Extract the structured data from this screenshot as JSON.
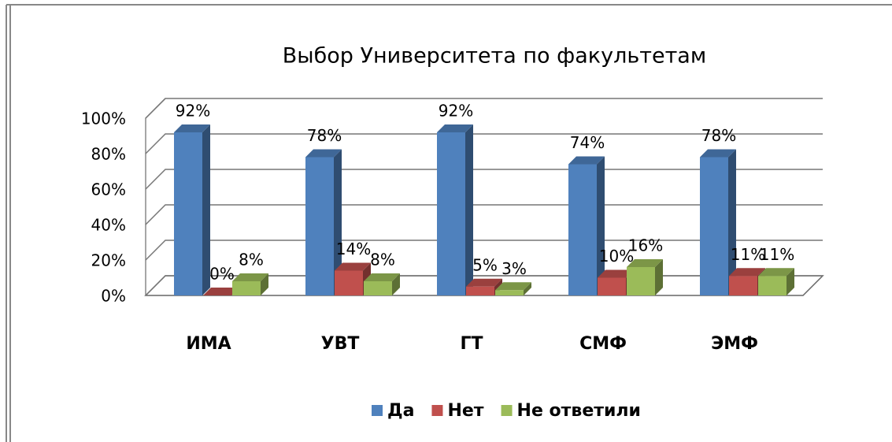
{
  "chart_data": {
    "type": "bar3d",
    "title": "Выбор Университета по факультетам",
    "categories": [
      "ИМА",
      "УВТ",
      "ГТ",
      "СМФ",
      "ЭМФ"
    ],
    "series": [
      {
        "name": "Да",
        "color": "#4f81bd",
        "values": [
          92,
          78,
          92,
          74,
          78
        ],
        "value_labels": [
          "92%",
          "78%",
          "92%",
          "74%",
          "78%"
        ]
      },
      {
        "name": "Нет",
        "color": "#c0504d",
        "values": [
          0,
          14,
          5,
          10,
          11
        ],
        "value_labels": [
          "0%",
          "14%",
          "5%",
          "10%",
          "11%"
        ]
      },
      {
        "name": "Не ответили",
        "color": "#9bbb59",
        "values": [
          8,
          8,
          3,
          16,
          11
        ],
        "value_labels": [
          "8%",
          "8%",
          "3%",
          "16%",
          "11%"
        ]
      }
    ],
    "ylim": [
      0,
      100
    ],
    "yticks": [
      {
        "value": 0,
        "label": "0%"
      },
      {
        "value": 20,
        "label": "20%"
      },
      {
        "value": 40,
        "label": "40%"
      },
      {
        "value": 60,
        "label": "60%"
      },
      {
        "value": 80,
        "label": "80%"
      },
      {
        "value": 100,
        "label": "100%"
      }
    ],
    "grid": true,
    "legend": "bottom"
  }
}
